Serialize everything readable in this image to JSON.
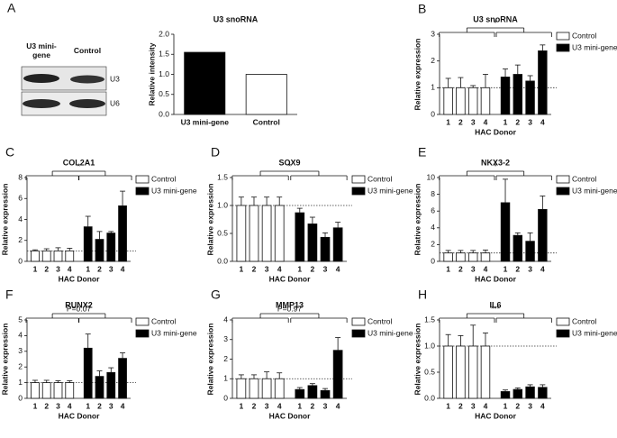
{
  "blot": {
    "panel_label": "A",
    "lanes": [
      "U3 mini-gene",
      "Control"
    ],
    "bands": [
      "U3",
      "U6"
    ]
  },
  "chart_data": [
    {
      "type": "bar",
      "title": "U3 snoRNA",
      "y_label": "Relative intensity",
      "categories": [
        "U3 mini-gene",
        "Control"
      ],
      "values": [
        1.55,
        1.0
      ],
      "colors": [
        "#000000",
        "#ffffff"
      ],
      "ylim": [
        0,
        2
      ],
      "yticks": [
        {
          "value": 0,
          "label": "0.0"
        },
        0.5,
        {
          "value": 1,
          "label": "1.0"
        },
        1.5,
        {
          "value": 2,
          "label": "2.0"
        }
      ]
    },
    {
      "type": "grouped_bar",
      "panel_label": "B",
      "title": "U3 snoRNA",
      "y_label": "Relative expression",
      "x_label": "HAC Donor",
      "categories": [
        "1",
        "2",
        "3",
        "4"
      ],
      "series": [
        {
          "name": "Control",
          "color": "#ffffff",
          "values": [
            1,
            1,
            1,
            1
          ],
          "errors": [
            0.35,
            0.38,
            0.08,
            0.5
          ]
        },
        {
          "name": "U3 mini-gene",
          "color": "#000000",
          "values": [
            1.4,
            1.5,
            1.25,
            2.38
          ],
          "errors": [
            0.3,
            0.35,
            0.2,
            0.22
          ]
        }
      ],
      "ylim": [
        0,
        3
      ],
      "yticks": [
        0,
        1,
        2,
        3
      ],
      "reference_line": 1,
      "annotation": "*"
    },
    {
      "type": "grouped_bar",
      "panel_label": "C",
      "title": "COL2A1",
      "y_label": "Relative expression",
      "x_label": "HAC Donor",
      "categories": [
        "1",
        "2",
        "3",
        "4"
      ],
      "series": [
        {
          "name": "Control",
          "color": "#ffffff",
          "values": [
            1,
            1,
            1,
            1
          ],
          "errors": [
            0.1,
            0.2,
            0.3,
            0.25
          ]
        },
        {
          "name": "U3 mini-gene",
          "color": "#000000",
          "values": [
            3.3,
            2.1,
            2.7,
            5.3
          ],
          "errors": [
            1.0,
            0.75,
            0.15,
            1.4
          ]
        }
      ],
      "ylim": [
        0,
        8
      ],
      "yticks": [
        0,
        2,
        4,
        6,
        8
      ],
      "reference_line": 1,
      "annotation": "*"
    },
    {
      "type": "grouped_bar",
      "panel_label": "D",
      "title": "SOX9",
      "y_label": "Relative expression",
      "x_label": "HAC Donor",
      "categories": [
        "1",
        "2",
        "3",
        "4"
      ],
      "series": [
        {
          "name": "Control",
          "color": "#ffffff",
          "values": [
            1,
            1,
            1,
            1
          ],
          "errors": [
            0.15,
            0.15,
            0.15,
            0.15
          ]
        },
        {
          "name": "U3 mini-gene",
          "color": "#000000",
          "values": [
            0.87,
            0.67,
            0.43,
            0.6
          ],
          "errors": [
            0.08,
            0.12,
            0.08,
            0.1
          ]
        }
      ],
      "ylim": [
        0,
        1.5
      ],
      "yticks": [
        {
          "value": 0,
          "label": "0.0"
        },
        0.5,
        {
          "value": 1,
          "label": "1.0"
        },
        1.5
      ],
      "reference_line": 1,
      "annotation": "*"
    },
    {
      "type": "grouped_bar",
      "panel_label": "E",
      "title": "NKX3-2",
      "y_label": "Relative expression",
      "x_label": "HAC Donor",
      "categories": [
        "1",
        "2",
        "3",
        "4"
      ],
      "series": [
        {
          "name": "Control",
          "color": "#ffffff",
          "values": [
            1,
            1,
            1,
            1
          ],
          "errors": [
            0.3,
            0.3,
            0.3,
            0.35
          ]
        },
        {
          "name": "U3 mini-gene",
          "color": "#000000",
          "values": [
            7.0,
            3.1,
            2.4,
            6.2
          ],
          "errors": [
            2.8,
            0.3,
            1.0,
            1.6
          ]
        }
      ],
      "ylim": [
        0,
        10
      ],
      "yticks": [
        0,
        2,
        4,
        6,
        8,
        10
      ],
      "reference_line": 1,
      "annotation": "*"
    },
    {
      "type": "grouped_bar",
      "panel_label": "F",
      "title": "RUNX2",
      "y_label": "Relative expression",
      "x_label": "HAC Donor",
      "categories": [
        "1",
        "2",
        "3",
        "4"
      ],
      "series": [
        {
          "name": "Control",
          "color": "#ffffff",
          "values": [
            1,
            1,
            1,
            1
          ],
          "errors": [
            0.15,
            0.15,
            0.12,
            0.12
          ]
        },
        {
          "name": "U3 mini-gene",
          "color": "#000000",
          "values": [
            3.2,
            1.4,
            1.65,
            2.55
          ],
          "errors": [
            0.9,
            0.35,
            0.3,
            0.35
          ]
        }
      ],
      "ylim": [
        0,
        5
      ],
      "yticks": [
        0,
        1,
        2,
        3,
        4,
        5
      ],
      "reference_line": 1,
      "annotation": "P=0.07"
    },
    {
      "type": "grouped_bar",
      "panel_label": "G",
      "title": "MMP13",
      "y_label": "Relative expression",
      "x_label": "HAC Donor",
      "categories": [
        "1",
        "2",
        "3",
        "4"
      ],
      "series": [
        {
          "name": "Control",
          "color": "#ffffff",
          "values": [
            1,
            1,
            1,
            1
          ],
          "errors": [
            0.2,
            0.2,
            0.35,
            0.3
          ]
        },
        {
          "name": "U3 mini-gene",
          "color": "#000000",
          "values": [
            0.45,
            0.65,
            0.4,
            2.45
          ],
          "errors": [
            0.1,
            0.1,
            0.1,
            0.65
          ]
        }
      ],
      "ylim": [
        0,
        4
      ],
      "yticks": [
        0,
        1,
        2,
        3,
        4
      ],
      "reference_line": 1,
      "annotation": "P=0.97"
    },
    {
      "type": "grouped_bar",
      "panel_label": "H",
      "title": "IL6",
      "y_label": "Relative expression",
      "x_label": "HAC Donor",
      "categories": [
        "1",
        "2",
        "3",
        "4"
      ],
      "series": [
        {
          "name": "Control",
          "color": "#ffffff",
          "values": [
            1,
            1,
            1,
            1
          ],
          "errors": [
            0.22,
            0.2,
            0.4,
            0.25
          ]
        },
        {
          "name": "U3 mini-gene",
          "color": "#000000",
          "values": [
            0.13,
            0.17,
            0.22,
            0.21
          ],
          "errors": [
            0.03,
            0.03,
            0.04,
            0.05
          ]
        }
      ],
      "ylim": [
        0,
        1.5
      ],
      "yticks": [
        {
          "value": 0,
          "label": "0.0"
        },
        0.5,
        {
          "value": 1,
          "label": "1.0"
        },
        1.5
      ],
      "reference_line": 1,
      "annotation": "***"
    }
  ]
}
